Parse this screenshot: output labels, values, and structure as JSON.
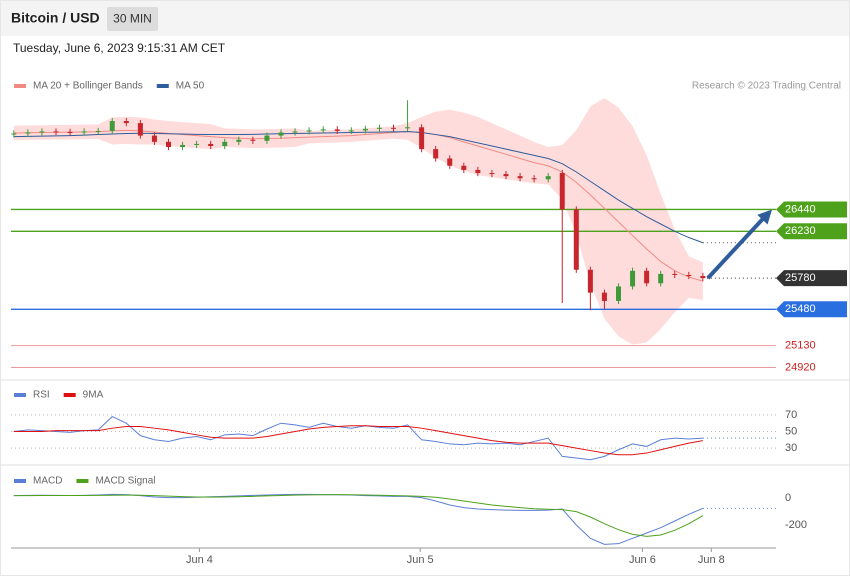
{
  "header": {
    "title": "Bitcoin / USD",
    "interval": "30 MIN",
    "timestamp": "Tuesday, June 6, 2023 9:15:31 AM CET"
  },
  "copyright": "Research © 2023 Trading Central",
  "chart_data": [
    {
      "type": "candlestick",
      "xlim": [
        -0.2,
        54.2
      ],
      "xticks": [
        {
          "value": 13.2,
          "label": "Jun 4"
        },
        {
          "value": 28.9,
          "label": "Jun 5"
        },
        {
          "value": 44.7,
          "label": "Jun 6"
        },
        {
          "value": 49.6,
          "label": "Jun 8"
        }
      ],
      "ylim": [
        24800,
        27800
      ],
      "up_color": "#3f9a3a",
      "down_color": "#c8252c",
      "open": [
        27160,
        27170,
        27180,
        27190,
        27185,
        27180,
        27190,
        27195,
        27290,
        27270,
        27150,
        27090,
        27040,
        27060,
        27070,
        27050,
        27090,
        27110,
        27100,
        27150,
        27180,
        27190,
        27200,
        27210,
        27195,
        27200,
        27215,
        27225,
        27220,
        27230,
        27020,
        26930,
        26860,
        26820,
        26790,
        26780,
        26760,
        26740,
        26730,
        26790,
        26440,
        25860,
        25640,
        25560,
        25700,
        25850,
        25730,
        25820,
        25810,
        25800
      ],
      "high": [
        27200,
        27210,
        27220,
        27220,
        27215,
        27220,
        27225,
        27320,
        27320,
        27300,
        27180,
        27120,
        27090,
        27100,
        27100,
        27120,
        27140,
        27140,
        27180,
        27210,
        27220,
        27230,
        27240,
        27240,
        27230,
        27245,
        27255,
        27255,
        27490,
        27260,
        27050,
        26960,
        26890,
        26850,
        26820,
        26810,
        26790,
        26770,
        26790,
        26820,
        26470,
        25890,
        25670,
        25730,
        25880,
        25880,
        25850,
        25850,
        25840,
        25830
      ],
      "low": [
        27130,
        27140,
        27150,
        27155,
        27150,
        27150,
        27160,
        27165,
        27240,
        27120,
        27060,
        27010,
        27010,
        27030,
        27020,
        27020,
        27060,
        27070,
        27070,
        27120,
        27150,
        27160,
        27170,
        27165,
        27165,
        27170,
        27185,
        27190,
        27190,
        26990,
        26900,
        26830,
        26790,
        26760,
        26750,
        26730,
        26710,
        26700,
        26700,
        25540,
        25830,
        25470,
        25480,
        25530,
        25670,
        25700,
        25700,
        25780,
        25770,
        25750
      ],
      "close": [
        27170,
        27180,
        27190,
        27185,
        27180,
        27190,
        27195,
        27290,
        27270,
        27150,
        27090,
        27040,
        27060,
        27070,
        27050,
        27090,
        27110,
        27100,
        27150,
        27180,
        27190,
        27200,
        27210,
        27195,
        27200,
        27215,
        27225,
        27220,
        27230,
        27020,
        26930,
        26860,
        26820,
        26790,
        26780,
        26760,
        26740,
        26730,
        26760,
        26440,
        25860,
        25640,
        25560,
        25700,
        25850,
        25730,
        25820,
        25810,
        25800,
        25780
      ],
      "series": [
        {
          "name": "MA 20 + Bollinger Bands",
          "color": "#f28a82",
          "band_color": "#ffdcdc",
          "values": [
            27175,
            27178,
            27180,
            27182,
            27183,
            27185,
            27187,
            27195,
            27200,
            27195,
            27185,
            27170,
            27160,
            27150,
            27140,
            27130,
            27125,
            27120,
            27122,
            27125,
            27130,
            27135,
            27140,
            27145,
            27150,
            27160,
            27170,
            27180,
            27190,
            27180,
            27160,
            27130,
            27090,
            27050,
            27010,
            26970,
            26930,
            26890,
            26860,
            26800,
            26700,
            26580,
            26450,
            26320,
            26190,
            26060,
            25940,
            25850,
            25790,
            25750
          ],
          "upper": [
            27245,
            27248,
            27250,
            27252,
            27253,
            27255,
            27257,
            27325,
            27330,
            27325,
            27305,
            27290,
            27280,
            27270,
            27260,
            27220,
            27215,
            27210,
            27212,
            27215,
            27220,
            27195,
            27200,
            27205,
            27210,
            27220,
            27230,
            27240,
            27270,
            27330,
            27380,
            27400,
            27370,
            27330,
            27270,
            27210,
            27150,
            27090,
            27040,
            27060,
            27200,
            27430,
            27510,
            27420,
            27240,
            26960,
            26590,
            26250,
            25990,
            25930
          ],
          "lower": [
            27105,
            27108,
            27110,
            27112,
            27113,
            27115,
            27117,
            27065,
            27070,
            27065,
            27065,
            27050,
            27040,
            27030,
            27020,
            27040,
            27035,
            27030,
            27032,
            27035,
            27040,
            27075,
            27080,
            27085,
            27090,
            27100,
            27110,
            27120,
            27110,
            27030,
            26940,
            26860,
            26810,
            26770,
            26750,
            26730,
            26710,
            26690,
            26680,
            26540,
            26200,
            25730,
            25390,
            25220,
            25140,
            25160,
            25290,
            25450,
            25590,
            25570
          ]
        },
        {
          "name": "MA 50",
          "color": "#2f5d9b",
          "values": [
            27140,
            27142,
            27145,
            27147,
            27150,
            27155,
            27160,
            27165,
            27170,
            27172,
            27170,
            27168,
            27165,
            27162,
            27160,
            27160,
            27160,
            27162,
            27165,
            27168,
            27170,
            27172,
            27175,
            27177,
            27180,
            27182,
            27184,
            27186,
            27188,
            27180,
            27160,
            27140,
            27110,
            27080,
            27050,
            27020,
            26990,
            26960,
            26930,
            26880,
            26800,
            26710,
            26620,
            26530,
            26450,
            26370,
            26300,
            26230,
            26170,
            26120
          ]
        }
      ],
      "levels": [
        {
          "value": 26440,
          "color": "#4ea21b",
          "style": "box"
        },
        {
          "value": 26230,
          "color": "#4ea21b",
          "style": "box"
        },
        {
          "value": 25780,
          "color": "#333333",
          "style": "box-dotted"
        },
        {
          "value": 25480,
          "color": "#2a6fe0",
          "style": "box"
        },
        {
          "value": 25130,
          "color": "#d21f1f",
          "style": "text"
        },
        {
          "value": 24920,
          "color": "#d21f1f",
          "style": "text"
        }
      ],
      "projection": {
        "from": 25780,
        "to": 26440,
        "color": "#2f5d9b"
      }
    },
    {
      "type": "line",
      "ylim": [
        12,
        88
      ],
      "yticks": [
        70,
        50,
        30
      ],
      "grid": true,
      "series": [
        {
          "name": "RSI",
          "color": "#5b7fd6",
          "values": [
            50,
            52,
            51,
            50,
            49,
            51,
            52,
            68,
            60,
            45,
            40,
            38,
            42,
            44,
            40,
            46,
            47,
            45,
            53,
            60,
            58,
            55,
            60,
            56,
            54,
            57,
            55,
            54,
            58,
            40,
            38,
            35,
            34,
            36,
            35,
            36,
            34,
            38,
            42,
            20,
            18,
            16,
            20,
            28,
            35,
            32,
            40,
            42,
            41,
            42
          ]
        },
        {
          "name": "9MA",
          "color": "#e01010",
          "values": [
            50,
            50,
            50,
            51,
            51,
            51,
            51,
            54,
            56,
            56,
            54,
            52,
            49,
            46,
            43,
            42,
            42,
            42,
            44,
            47,
            50,
            53,
            55,
            56,
            57,
            57,
            56,
            56,
            56,
            54,
            51,
            48,
            45,
            42,
            39,
            37,
            36,
            36,
            36,
            33,
            30,
            27,
            24,
            22,
            22,
            24,
            28,
            32,
            36,
            39
          ]
        }
      ]
    },
    {
      "type": "line",
      "ylim": [
        -350,
        100
      ],
      "yticks": [
        0,
        -200
      ],
      "grid": false,
      "series": [
        {
          "name": "MACD",
          "color": "#5b7fd6",
          "values": [
            20,
            22,
            23,
            22,
            21,
            22,
            25,
            30,
            28,
            20,
            10,
            5,
            5,
            8,
            12,
            15,
            18,
            22,
            25,
            28,
            30,
            30,
            28,
            27,
            25,
            20,
            18,
            15,
            15,
            5,
            -20,
            -50,
            -70,
            -80,
            -85,
            -88,
            -90,
            -90,
            -88,
            -80,
            -200,
            -300,
            -345,
            -340,
            -300,
            -260,
            -220,
            -170,
            -120,
            -75
          ]
        },
        {
          "name": "MACD Signal",
          "color": "#4ea21b",
          "values": [
            20,
            20,
            21,
            21,
            21,
            21,
            22,
            23,
            24,
            23,
            20,
            17,
            13,
            10,
            9,
            10,
            12,
            15,
            18,
            21,
            24,
            26,
            27,
            28,
            27,
            25,
            23,
            20,
            18,
            15,
            8,
            -5,
            -20,
            -35,
            -50,
            -60,
            -70,
            -78,
            -82,
            -85,
            -100,
            -140,
            -190,
            -235,
            -270,
            -285,
            -275,
            -240,
            -190,
            -130
          ]
        }
      ]
    }
  ]
}
